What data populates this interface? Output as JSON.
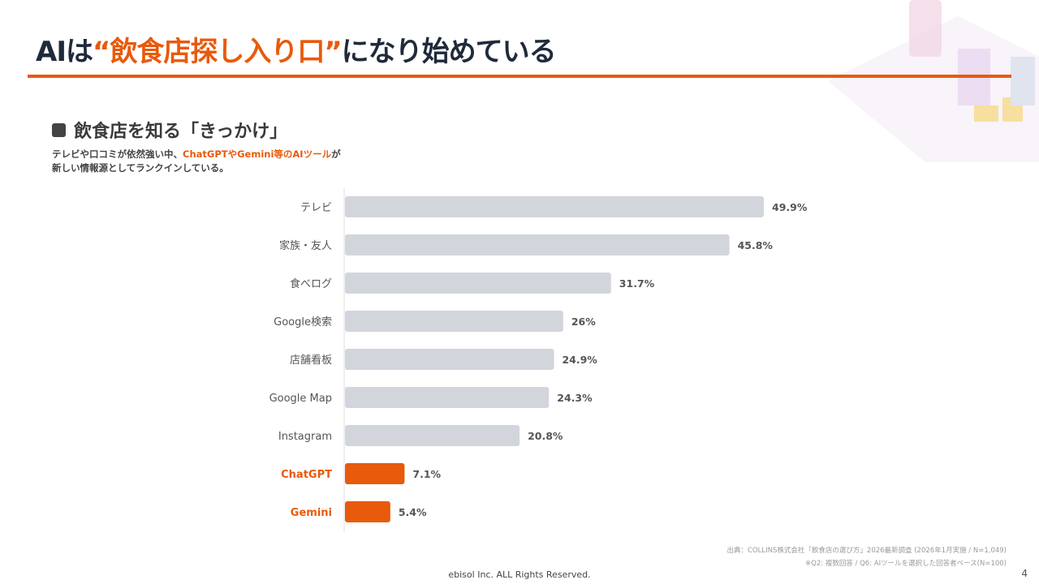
{
  "header": {
    "title_pre": "AIは",
    "title_highlight": "“飲食店探し入り口”",
    "title_post": "になり始めている"
  },
  "section": {
    "heading": "飲食店を知る「きっかけ」",
    "desc_pre": "テレビや口コミが依然強い中、",
    "desc_highlight": "ChatGPTやGemini等のAIツール",
    "desc_post": "が",
    "desc_line2": "新しい情報源としてランクインしている。"
  },
  "chart_data": {
    "type": "bar",
    "orientation": "horizontal",
    "categories": [
      "テレビ",
      "家族・友人",
      "食べログ",
      "Google検索",
      "店舗看板",
      "Google Map",
      "Instagram",
      "ChatGPT",
      "Gemini"
    ],
    "values": [
      49.9,
      45.8,
      31.7,
      26,
      24.9,
      24.3,
      20.8,
      7.1,
      5.4
    ],
    "data_labels": [
      "49.9%",
      "45.8%",
      "31.7%",
      "26%",
      "24.9%",
      "24.3%",
      "20.8%",
      "7.1%",
      "5.4%"
    ],
    "highlighted": [
      "ChatGPT",
      "Gemini"
    ],
    "xlim": [
      0,
      50
    ],
    "grid": false,
    "colors": {
      "default": "#d3d5dc",
      "highlight": "#e85a0c"
    }
  },
  "source": {
    "line1": "出典：COLLINS株式会社「飲食店の選び方」2026最新調査 (2026年1月実施 / N=1,049)",
    "line2": "※Q2: 複数回答 / Q6: AIツールを選択した回答者ベース(N=100)"
  },
  "footer": {
    "copyright": "ebisol Inc. ALL Rights Reserved.",
    "page": "4"
  }
}
